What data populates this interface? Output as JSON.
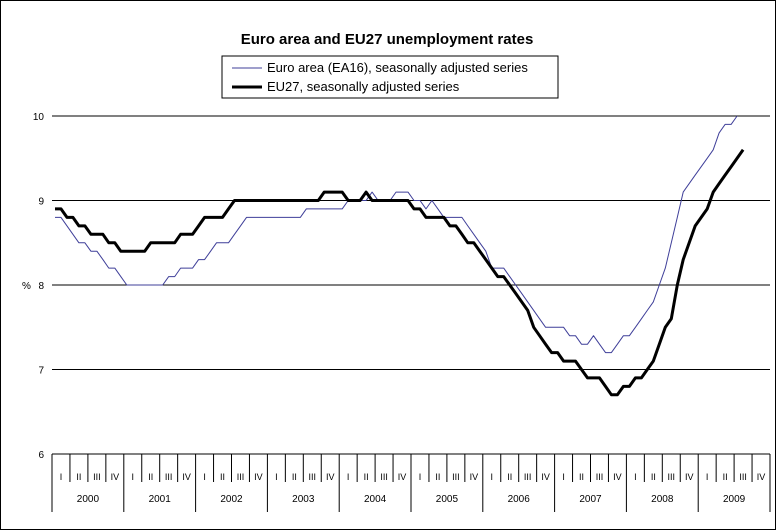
{
  "chart_data": {
    "type": "line",
    "title": "Euro area and EU27 unemployment rates",
    "ylabel": "%",
    "ylim": [
      6,
      10
    ],
    "yticks": [
      6,
      7,
      8,
      9,
      10
    ],
    "grid": "horizontal",
    "legend_position": "top-center",
    "years": [
      "2000",
      "2001",
      "2002",
      "2003",
      "2004",
      "2005",
      "2006",
      "2007",
      "2008",
      "2009"
    ],
    "quarters": [
      "I",
      "II",
      "III",
      "IV"
    ],
    "x_months": 120,
    "series": [
      {
        "name": "Euro area (EA16), seasonally adjusted series",
        "color": "#3f3f99",
        "style": "thin",
        "values": [
          8.8,
          8.8,
          8.7,
          8.6,
          8.5,
          8.5,
          8.4,
          8.4,
          8.3,
          8.2,
          8.2,
          8.1,
          8.0,
          8.0,
          8.0,
          8.0,
          8.0,
          8.0,
          8.0,
          8.1,
          8.1,
          8.2,
          8.2,
          8.2,
          8.3,
          8.3,
          8.4,
          8.5,
          8.5,
          8.5,
          8.6,
          8.7,
          8.8,
          8.8,
          8.8,
          8.8,
          8.8,
          8.8,
          8.8,
          8.8,
          8.8,
          8.8,
          8.9,
          8.9,
          8.9,
          8.9,
          8.9,
          8.9,
          8.9,
          9.0,
          9.0,
          9.0,
          9.0,
          9.1,
          9.0,
          9.0,
          9.0,
          9.1,
          9.1,
          9.1,
          9.0,
          9.0,
          8.9,
          9.0,
          8.9,
          8.8,
          8.8,
          8.8,
          8.8,
          8.7,
          8.6,
          8.5,
          8.4,
          8.2,
          8.2,
          8.2,
          8.1,
          8.0,
          7.9,
          7.8,
          7.7,
          7.6,
          7.5,
          7.5,
          7.5,
          7.5,
          7.4,
          7.4,
          7.3,
          7.3,
          7.4,
          7.3,
          7.2,
          7.2,
          7.3,
          7.4,
          7.4,
          7.5,
          7.6,
          7.7,
          7.8,
          8.0,
          8.2,
          8.5,
          8.8,
          9.1,
          9.2,
          9.3,
          9.4,
          9.5,
          9.6,
          9.8,
          9.9,
          9.9,
          10.0
        ]
      },
      {
        "name": "EU27, seasonally adjusted series",
        "color": "#000000",
        "style": "thick",
        "values": [
          8.9,
          8.9,
          8.8,
          8.8,
          8.7,
          8.7,
          8.6,
          8.6,
          8.6,
          8.5,
          8.5,
          8.4,
          8.4,
          8.4,
          8.4,
          8.4,
          8.5,
          8.5,
          8.5,
          8.5,
          8.5,
          8.6,
          8.6,
          8.6,
          8.7,
          8.8,
          8.8,
          8.8,
          8.8,
          8.9,
          9.0,
          9.0,
          9.0,
          9.0,
          9.0,
          9.0,
          9.0,
          9.0,
          9.0,
          9.0,
          9.0,
          9.0,
          9.0,
          9.0,
          9.0,
          9.1,
          9.1,
          9.1,
          9.1,
          9.0,
          9.0,
          9.0,
          9.1,
          9.0,
          9.0,
          9.0,
          9.0,
          9.0,
          9.0,
          9.0,
          8.9,
          8.9,
          8.8,
          8.8,
          8.8,
          8.8,
          8.7,
          8.7,
          8.6,
          8.5,
          8.5,
          8.4,
          8.3,
          8.2,
          8.1,
          8.1,
          8.0,
          7.9,
          7.8,
          7.7,
          7.5,
          7.4,
          7.3,
          7.2,
          7.2,
          7.1,
          7.1,
          7.1,
          7.0,
          6.9,
          6.9,
          6.9,
          6.8,
          6.7,
          6.7,
          6.8,
          6.8,
          6.9,
          6.9,
          7.0,
          7.1,
          7.3,
          7.5,
          7.6,
          8.0,
          8.3,
          8.5,
          8.7,
          8.8,
          8.9,
          9.1,
          9.2,
          9.3,
          9.4,
          9.5,
          9.6
        ]
      }
    ]
  }
}
